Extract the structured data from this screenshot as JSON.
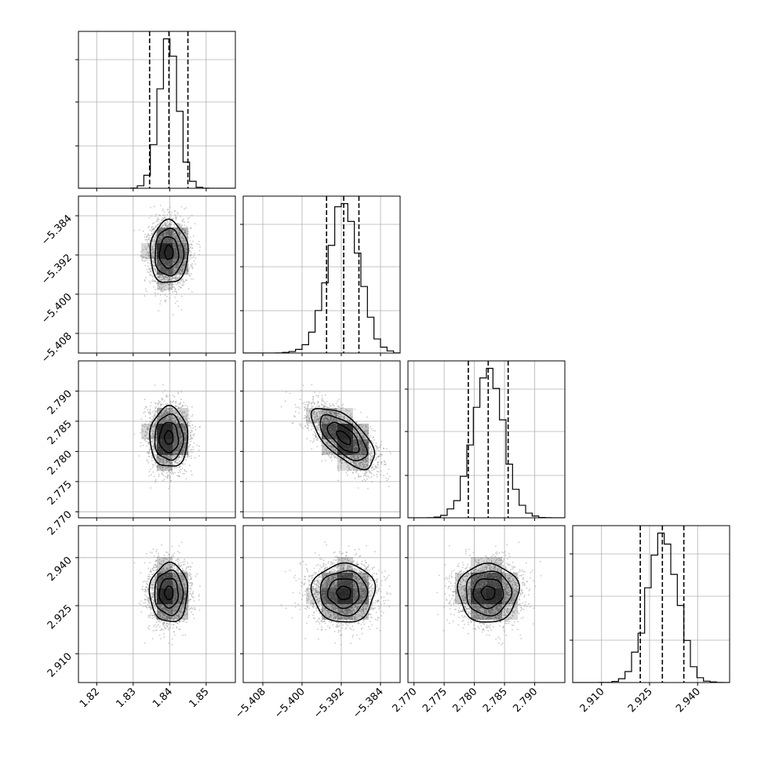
{
  "chart_data": {
    "type": "corner",
    "parameters": [
      {
        "range": [
          1.815,
          1.858
        ],
        "ticks": [
          "1.82",
          "1.83",
          "1.84",
          "1.85"
        ],
        "tick_values": [
          1.82,
          1.83,
          1.84,
          1.85
        ],
        "mean": 1.8398,
        "sigma": 0.0026,
        "quantiles": [
          1.8345,
          1.8398,
          1.845
        ]
      },
      {
        "range": [
          -5.412,
          -5.38
        ],
        "ticks": [
          "−5.408",
          "−5.400",
          "−5.392",
          "−5.384"
        ],
        "tick_values": [
          -5.408,
          -5.4,
          -5.392,
          -5.384
        ],
        "mean": -5.3915,
        "sigma": 0.0032,
        "quantiles": [
          -5.395,
          -5.3915,
          -5.3884
        ]
      },
      {
        "range": [
          2.769,
          2.795
        ],
        "ticks": [
          "2.770",
          "2.775",
          "2.780",
          "2.785",
          "2.790"
        ],
        "tick_values": [
          2.77,
          2.775,
          2.78,
          2.785,
          2.79
        ],
        "mean": 2.7823,
        "sigma": 0.0025,
        "quantiles": [
          2.779,
          2.7823,
          2.7856
        ]
      },
      {
        "range": [
          2.901,
          2.95
        ],
        "ticks": [
          "2.910",
          "2.925",
          "2.940"
        ],
        "tick_values": [
          2.91,
          2.925,
          2.94
        ],
        "mean": 2.929,
        "sigma": 0.0046,
        "quantiles": [
          2.9221,
          2.929,
          2.9357
        ]
      }
    ],
    "correlations": [
      [
        1,
        0,
        0,
        0
      ],
      [
        0,
        1,
        -0.65,
        0
      ],
      [
        0,
        -0.65,
        1,
        0
      ],
      [
        0,
        0,
        0,
        1
      ]
    ],
    "histogram_style": "step",
    "quantile_line_style": "dashed",
    "contour_levels": 4,
    "grid": true,
    "colors": {
      "line": "#000000",
      "points": "#9a9a9a",
      "grid": "#b0b0b0",
      "density": "#000000"
    }
  }
}
